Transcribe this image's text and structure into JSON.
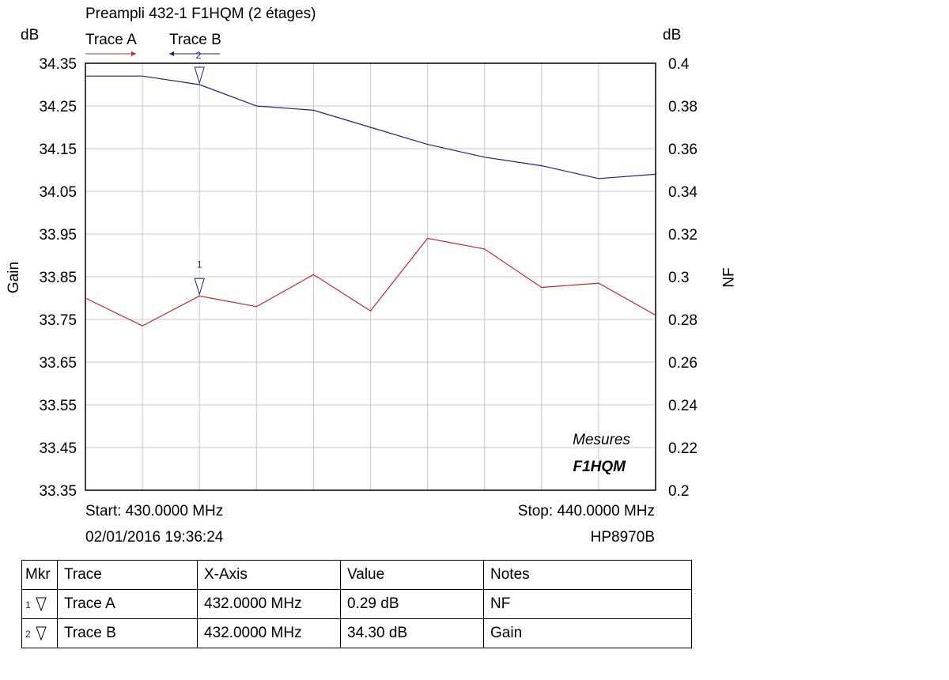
{
  "chart_data": {
    "type": "line",
    "title": "Preampli 432-1 F1HQM (2 étages)",
    "left_unit": "dB",
    "right_unit": "dB",
    "ylabel": "Gain",
    "y2label": "NF",
    "xlim": [
      430,
      440
    ],
    "ylim": [
      33.35,
      34.35
    ],
    "y2lim": [
      0.2,
      0.4
    ],
    "yticks": [
      "34.35",
      "34.25",
      "34.15",
      "34.05",
      "33.95",
      "33.85",
      "33.75",
      "33.65",
      "33.55",
      "33.45",
      "33.35"
    ],
    "y2ticks": [
      "0.4",
      "0.38",
      "0.36",
      "0.34",
      "0.32",
      "0.3",
      "0.28",
      "0.26",
      "0.24",
      "0.22",
      "0.2"
    ],
    "grid": true,
    "legend_position": "top-left",
    "x": [
      430,
      431,
      432,
      433,
      434,
      435,
      436,
      437,
      438,
      439,
      440
    ],
    "series": [
      {
        "name": "Trace A",
        "axis": "right",
        "color": "#c0282d",
        "values": [
          0.29,
          0.277,
          0.291,
          0.286,
          0.301,
          0.284,
          0.318,
          0.313,
          0.295,
          0.297,
          0.282
        ]
      },
      {
        "name": "Trace B",
        "axis": "left",
        "color": "#1a237e",
        "values": [
          34.32,
          34.32,
          34.3,
          34.25,
          34.24,
          34.2,
          34.16,
          34.13,
          34.11,
          34.08,
          34.09
        ]
      }
    ],
    "markers": [
      {
        "id": "1",
        "series": "Trace A",
        "x": 432
      },
      {
        "id": "2",
        "series": "Trace B",
        "x": 432
      }
    ],
    "annotation": {
      "line1": "Mesures",
      "line2": "F1HQM"
    },
    "start_label": "Start: 430.0000 MHz",
    "stop_label": "Stop: 440.0000 MHz",
    "timestamp": "02/01/2016 19:36:24",
    "instrument": "HP8970B"
  },
  "marker_table": {
    "headers": [
      "Mkr",
      "Trace",
      "X-Axis",
      "Value",
      "Notes"
    ],
    "rows": [
      {
        "mkr": "1",
        "trace": "Trace A",
        "x_axis": "432.0000 MHz",
        "value": "0.29 dB",
        "notes": "NF"
      },
      {
        "mkr": "2",
        "trace": "Trace B",
        "x_axis": "432.0000 MHz",
        "value": "34.30 dB",
        "notes": "Gain"
      }
    ]
  }
}
